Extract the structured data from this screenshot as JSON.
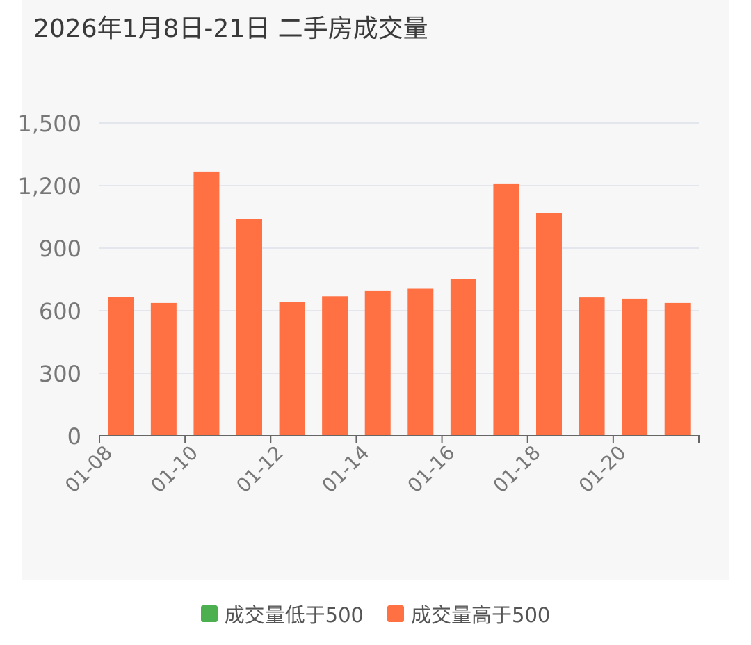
{
  "colors": {
    "below_500": "#4caf50",
    "above_500": "#ff7043",
    "grid": "#e3e6ec",
    "axis": "#666666",
    "tick_text": "#777777",
    "title_text": "#3a3a3a"
  },
  "chart_data": {
    "type": "bar",
    "title": "2026年1月8日-21日 二手房成交量",
    "xlabel": "",
    "ylabel": "",
    "categories": [
      "01-08",
      "01-09",
      "01-10",
      "01-11",
      "01-12",
      "01-13",
      "01-14",
      "01-15",
      "01-16",
      "01-17",
      "01-18",
      "01-19",
      "01-20",
      "01-21"
    ],
    "x_tick_labels": [
      "01-08",
      "01-10",
      "01-12",
      "01-14",
      "01-16",
      "01-18",
      "01-20"
    ],
    "values": [
      665,
      637,
      1267,
      1040,
      643,
      669,
      697,
      705,
      752,
      1207,
      1070,
      663,
      657,
      637
    ],
    "ylim": [
      0,
      1500
    ],
    "y_ticks": [
      0,
      300,
      600,
      900,
      1200,
      1500
    ],
    "y_tick_labels": [
      "0",
      "300",
      "600",
      "900",
      "1,200",
      "1,500"
    ],
    "threshold": 500,
    "grid": "horizontal",
    "legend_position": "bottom-center",
    "legend": [
      {
        "label": "成交量低于500",
        "color": "#4caf50"
      },
      {
        "label": "成交量高于500",
        "color": "#ff7043"
      }
    ]
  }
}
